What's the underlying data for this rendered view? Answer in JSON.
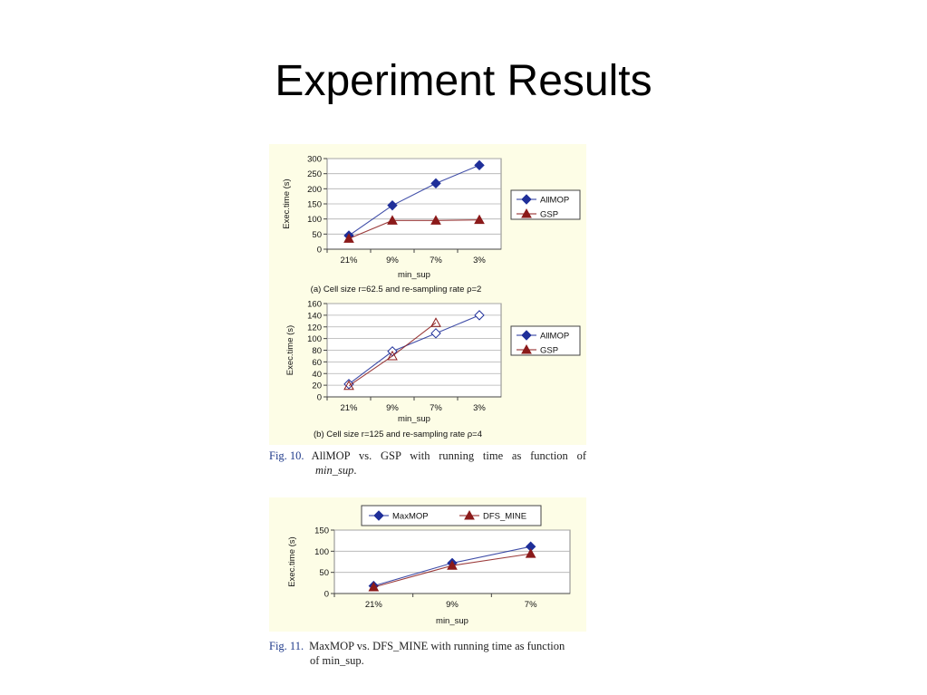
{
  "slide": {
    "title": "Experiment Results"
  },
  "colors": {
    "allmop": "#1f2f99",
    "gsp": "#8b1a1a",
    "panel_bg": "#fdfde6",
    "caption_label": "#1f3a8a"
  },
  "fig10": {
    "label": "Fig. 10.",
    "text_a": "AllMOP vs. GSP with running time as function of",
    "text_b": "min_sup",
    "text_c": "."
  },
  "fig11": {
    "label": "Fig. 11.",
    "text_a": "MaxMOP vs. DFS_MINE with running time as function",
    "text_b": "of min_sup."
  },
  "chart_data": [
    {
      "type": "line",
      "categories": [
        "21%",
        "9%",
        "7%",
        "3%"
      ],
      "series": [
        {
          "name": "AllMOP",
          "values": [
            45,
            145,
            218,
            278
          ],
          "marker": "diamond-filled",
          "color": "#1f2f99"
        },
        {
          "name": "GSP",
          "values": [
            35,
            95,
            95,
            97
          ],
          "marker": "triangle-filled",
          "color": "#8b1a1a"
        }
      ],
      "xlabel": "min_sup",
      "ylabel": "Exec.time (s)",
      "ylim": [
        0,
        300
      ],
      "yticks": [
        0,
        50,
        100,
        150,
        200,
        250,
        300
      ],
      "caption": "(a) Cell size r=62.5 and re-sampling rate ρ=2",
      "legend": "right",
      "grid": true
    },
    {
      "type": "line",
      "categories": [
        "21%",
        "9%",
        "7%",
        "3%"
      ],
      "series": [
        {
          "name": "AllMOP",
          "values": [
            22,
            78,
            109,
            140
          ],
          "marker": "diamond-open",
          "color": "#1f2f99"
        },
        {
          "name": "GSP",
          "values": [
            19,
            70,
            127,
            null
          ],
          "marker": "triangle-open",
          "color": "#8b1a1a"
        }
      ],
      "legend_markers": [
        "diamond-filled",
        "triangle-filled"
      ],
      "xlabel": "min_sup",
      "ylabel": "Exec.time (s)",
      "ylim": [
        0,
        160
      ],
      "yticks": [
        0,
        20,
        40,
        60,
        80,
        100,
        120,
        140,
        160
      ],
      "caption": "(b) Cell size r=125 and re-sampling rate ρ=4",
      "legend": "right",
      "grid": true
    },
    {
      "type": "line",
      "categories": [
        "21%",
        "9%",
        "7%"
      ],
      "series": [
        {
          "name": "MaxMOP",
          "values": [
            18,
            72,
            111
          ],
          "marker": "diamond-filled",
          "color": "#1f2f99"
        },
        {
          "name": "DFS_MINE",
          "values": [
            15,
            66,
            94
          ],
          "marker": "triangle-filled",
          "color": "#8b1a1a"
        }
      ],
      "xlabel": "min_sup",
      "ylabel": "Exec.time (s)",
      "ylim": [
        0,
        150
      ],
      "yticks": [
        0,
        50,
        100,
        150
      ],
      "legend": "top",
      "grid": true
    }
  ]
}
